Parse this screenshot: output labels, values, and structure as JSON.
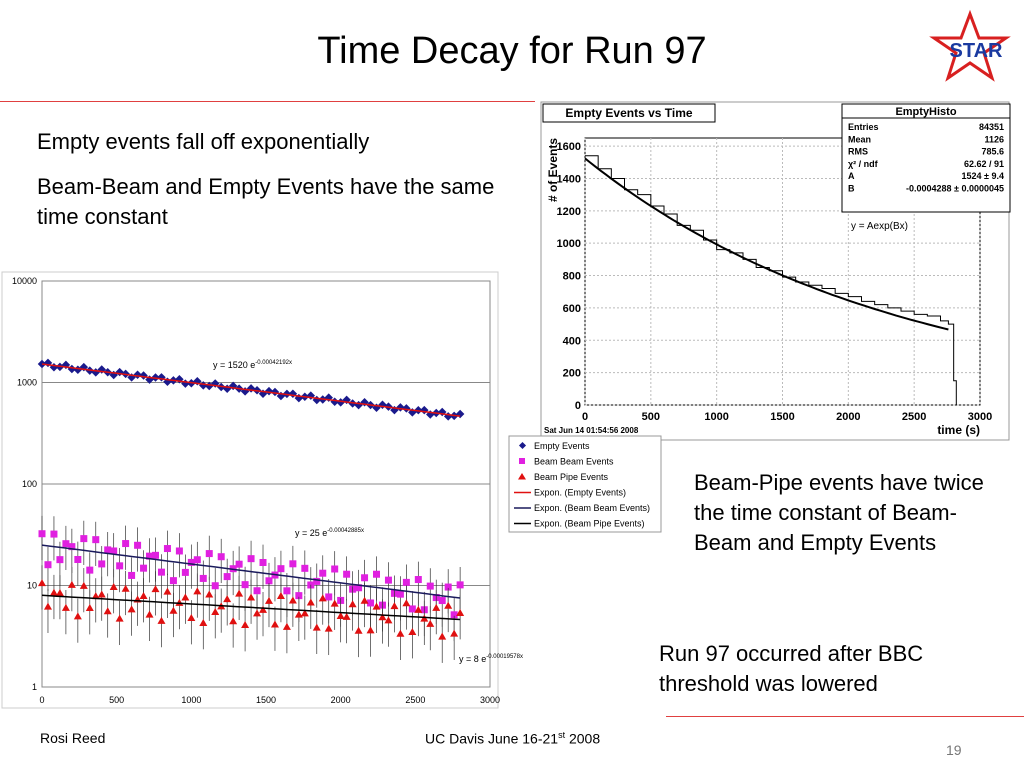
{
  "slide": {
    "title": "Time Decay for Run 97",
    "bullets": [
      "Empty events fall off exponentially",
      "Beam-Beam and Empty Events have the same time constant"
    ],
    "note_pipe": "Beam-Pipe events have twice the time constant of Beam-Beam and Empty Events",
    "note_run": "Run 97 occurred after BBC threshold was lowered",
    "logo_text": "STAR",
    "footer_left": "Rosi Reed",
    "footer_center": "UC Davis June 16-21",
    "footer_center_sup": "st",
    "footer_center_year": " 2008",
    "page_number": "19"
  },
  "chart_data": [
    {
      "type": "line",
      "title": "Empty Events vs Time",
      "xlabel": "time (s)",
      "ylabel": "# of Events",
      "xlim": [
        0,
        3000
      ],
      "ylim": [
        0,
        1650
      ],
      "xticks": [
        0,
        500,
        1000,
        1500,
        2000,
        2500,
        3000
      ],
      "yticks": [
        0,
        200,
        400,
        600,
        800,
        1000,
        1200,
        1400,
        1600
      ],
      "timestamp": "Sat Jun 14 01:54:56 2008",
      "fit_label": "y = Aexp(Bx)",
      "stats_box": {
        "title": "EmptyHisto",
        "rows": [
          {
            "label": "Entries",
            "value": "84351"
          },
          {
            "label": "Mean",
            "value": "1126"
          },
          {
            "label": "RMS",
            "value": "785.6"
          },
          {
            "label": "χ² / ndf",
            "value": "62.62 / 91"
          },
          {
            "label": "A",
            "value": "1524 ± 9.4"
          },
          {
            "label": "B",
            "value": "-0.0004288 ± 0.0000045"
          }
        ]
      },
      "histogram": {
        "x": [
          0,
          100,
          200,
          300,
          400,
          500,
          600,
          700,
          800,
          900,
          1000,
          1100,
          1200,
          1300,
          1400,
          1500,
          1600,
          1700,
          1800,
          1900,
          2000,
          2100,
          2200,
          2300,
          2400,
          2500,
          2600,
          2700,
          2760,
          2800
        ],
        "y": [
          1540,
          1460,
          1400,
          1330,
          1300,
          1230,
          1180,
          1110,
          1080,
          1020,
          960,
          940,
          900,
          850,
          830,
          790,
          760,
          740,
          720,
          690,
          670,
          640,
          620,
          600,
          580,
          560,
          550,
          520,
          500,
          150
        ]
      },
      "fit": {
        "A": 1524,
        "B": -0.0004288,
        "x_range": [
          0,
          2760
        ]
      }
    },
    {
      "type": "scatter",
      "y_scale": "log",
      "xlim": [
        0,
        3000
      ],
      "ylim": [
        1,
        10000
      ],
      "xticks": [
        0,
        500,
        1000,
        1500,
        2000,
        2500,
        3000
      ],
      "yticks": [
        1,
        10,
        100,
        1000,
        10000
      ],
      "fit_labels": [
        {
          "text": "y = 1520 e",
          "exp": "-0.00042192x"
        },
        {
          "text": "y = 25 e",
          "exp": "-0.00042885x"
        },
        {
          "text": "y = 8 e",
          "exp": "-0.00019578x"
        }
      ],
      "legend": [
        {
          "name": "Empty Events",
          "marker": "diamond",
          "color": "#1a1a8c"
        },
        {
          "name": "Beam Beam Events",
          "marker": "square",
          "color": "#e020e0"
        },
        {
          "name": "Beam Pipe Events",
          "marker": "triangle",
          "color": "#e01010"
        },
        {
          "name": "Expon. (Empty Events)",
          "line": "#e01010"
        },
        {
          "name": "Expon. (Beam Beam Events)",
          "line": "#1a1a5c"
        },
        {
          "name": "Expon. (Beam Pipe Events)",
          "line": "#000000"
        }
      ],
      "series": [
        {
          "name": "Empty Events",
          "fit": {
            "A": 1520,
            "B": -0.00042192
          },
          "x_range": [
            0,
            2800
          ]
        },
        {
          "name": "Beam Beam Events",
          "fit": {
            "A": 25,
            "B": -0.00042885
          },
          "x_range": [
            0,
            2800
          ]
        },
        {
          "name": "Beam Pipe Events",
          "fit": {
            "A": 8,
            "B": -0.00019578
          },
          "x_range": [
            0,
            2800
          ]
        }
      ]
    }
  ]
}
